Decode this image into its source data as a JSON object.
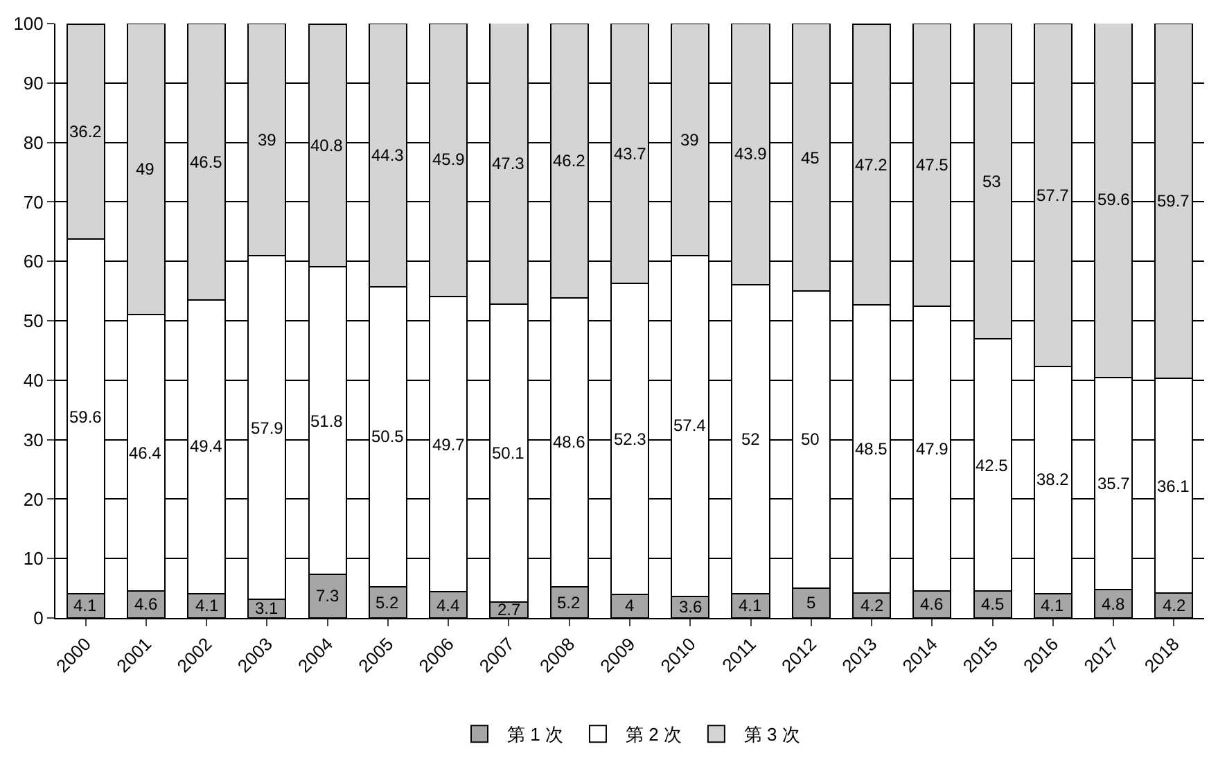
{
  "chart_data": {
    "type": "bar",
    "stacked": true,
    "data_labels": true,
    "grid": "y",
    "legend": "bottom",
    "categories": [
      "2000",
      "2001",
      "2002",
      "2003",
      "2004",
      "2005",
      "2006",
      "2007",
      "2008",
      "2009",
      "2010",
      "2011",
      "2012",
      "2013",
      "2014",
      "2015",
      "2016",
      "2017",
      "2018"
    ],
    "ylim": [
      0,
      100
    ],
    "yticks": [
      0,
      10,
      20,
      30,
      40,
      50,
      60,
      70,
      80,
      90,
      100
    ],
    "series": [
      {
        "name": "第 1 次",
        "color": "#a6a6a6",
        "values": [
          4.1,
          4.6,
          4.1,
          3.1,
          7.3,
          5.2,
          4.4,
          2.7,
          5.2,
          4,
          3.6,
          4.1,
          5,
          4.2,
          4.6,
          4.5,
          4.1,
          4.8,
          4.2
        ]
      },
      {
        "name": "第 2 次",
        "color": "#ffffff",
        "values": [
          59.6,
          46.4,
          49.4,
          57.9,
          51.8,
          50.5,
          49.7,
          50.1,
          48.6,
          52.3,
          57.4,
          52,
          50,
          48.5,
          47.9,
          42.5,
          38.2,
          35.7,
          36.1
        ]
      },
      {
        "name": "第 3 次",
        "color": "#d4d4d4",
        "values": [
          36.2,
          49,
          46.5,
          39,
          40.8,
          44.3,
          45.9,
          47.3,
          46.2,
          43.7,
          39,
          43.9,
          45,
          47.2,
          47.5,
          53,
          57.7,
          59.6,
          59.7
        ]
      }
    ]
  }
}
